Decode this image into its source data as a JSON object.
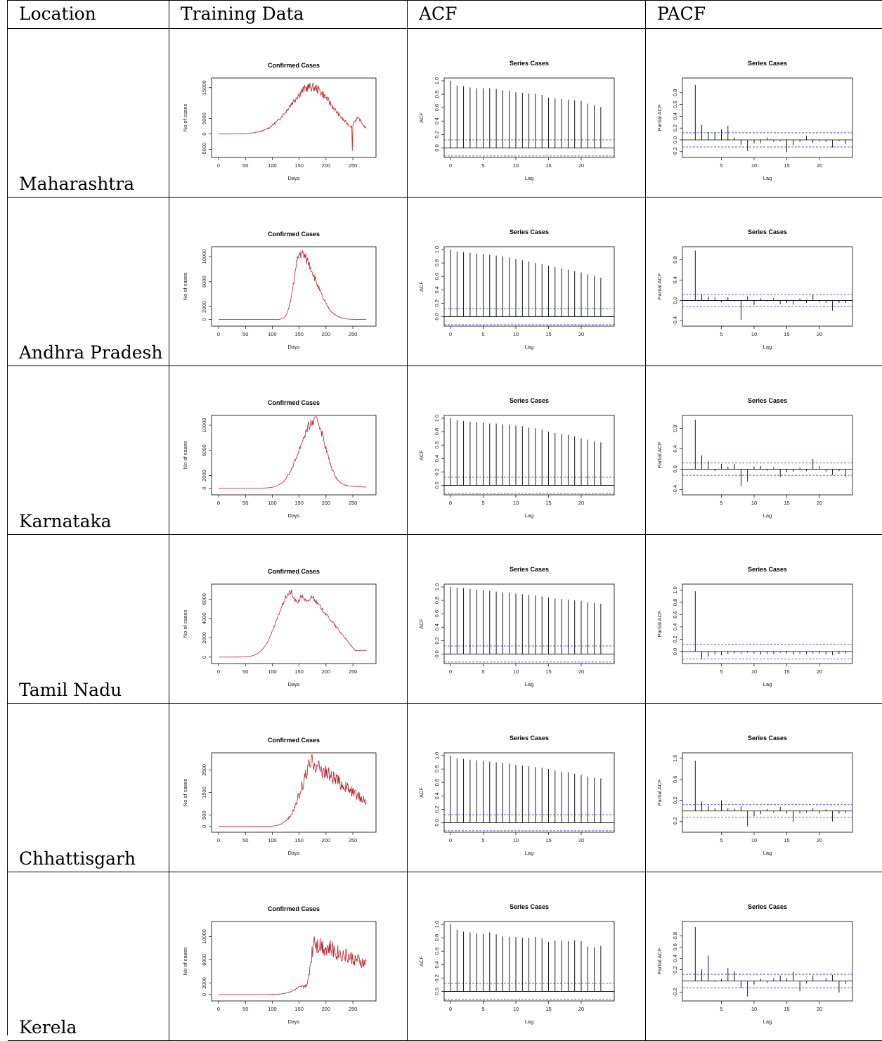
{
  "headers": [
    "Location",
    "Training Data",
    "ACF",
    "PACF"
  ],
  "rows": [
    {
      "location": "Maharashtra",
      "peak": 16000,
      "peak_day": 172,
      "yticks": [
        -5000,
        0,
        5000,
        15000
      ],
      "ylim": [
        -6500,
        17000
      ],
      "pacf_ticks": [
        -0.2,
        0.0,
        0.2,
        0.4,
        0.6,
        0.8
      ],
      "pacf_ylim": [
        -0.25,
        1.0
      ]
    },
    {
      "location": "Andhra Pradesh",
      "peak": 10500,
      "peak_day": 150,
      "yticks": [
        0,
        2000,
        6000,
        10000
      ],
      "ylim": [
        -500,
        11000
      ],
      "pacf_ticks": [
        -0.4,
        0.0,
        0.4,
        0.8
      ],
      "pacf_ylim": [
        -0.45,
        1.0
      ]
    },
    {
      "location": "Karnataka",
      "peak": 10500,
      "peak_day": 178,
      "yticks": [
        0,
        2000,
        6000,
        10000
      ],
      "ylim": [
        -500,
        11000
      ],
      "pacf_ticks": [
        -0.4,
        0.0,
        0.4,
        0.8
      ],
      "pacf_ylim": [
        -0.45,
        1.0
      ]
    },
    {
      "location": "Tamil Nadu",
      "peak": 6800,
      "peak_day": 137,
      "yticks": [
        0,
        2000,
        4000,
        6000
      ],
      "ylim": [
        -300,
        7200
      ],
      "pacf_ticks": [
        0.0,
        0.2,
        0.4,
        0.6,
        0.8,
        1.0
      ],
      "pacf_ylim": [
        -0.15,
        1.05
      ]
    },
    {
      "location": "Chhattisgarh",
      "peak": 2900,
      "peak_day": 180,
      "yticks": [
        0,
        500,
        1500,
        2500
      ],
      "ylim": [
        -100,
        3100
      ],
      "pacf_ticks": [
        -0.2,
        0.2,
        0.6,
        1.0
      ],
      "pacf_ylim": [
        -0.35,
        1.05
      ]
    },
    {
      "location": "Kerela",
      "peak": 11300,
      "peak_day": 180,
      "yticks": [
        0,
        2000,
        6000,
        10000
      ],
      "ylim": [
        -500,
        12000
      ],
      "pacf_ticks": [
        -0.2,
        0.2,
        0.4,
        0.6,
        0.8
      ],
      "pacf_ylim": [
        -0.3,
        1.0
      ]
    }
  ],
  "chart_data": {
    "type": "line",
    "training": {
      "title": "Confirmed Cases",
      "xlabel": "Days",
      "ylabel": "No of cases",
      "xticks": [
        0,
        50,
        100,
        150,
        200,
        250
      ],
      "xlim": [
        0,
        280
      ],
      "line_color": "#c0202a"
    },
    "acf": {
      "title": "Series  Cases",
      "xlabel": "Lag",
      "ylabel": "ACF",
      "xticks": [
        5,
        10,
        15,
        20
      ],
      "yticks": [
        0.0,
        0.2,
        0.4,
        0.6,
        0.8,
        1.0
      ],
      "ylim": [
        -0.1,
        1.0
      ],
      "conf_band": 0.12,
      "series": [
        [
          1,
          0.93,
          0.92,
          0.9,
          0.89,
          0.89,
          0.89,
          0.88,
          0.86,
          0.85,
          0.83,
          0.82,
          0.81,
          0.81,
          0.79,
          0.75,
          0.74,
          0.73,
          0.72,
          0.71,
          0.7,
          0.66,
          0.64,
          0.61
        ],
        [
          1,
          0.97,
          0.96,
          0.95,
          0.94,
          0.93,
          0.92,
          0.91,
          0.9,
          0.88,
          0.86,
          0.84,
          0.82,
          0.8,
          0.78,
          0.76,
          0.74,
          0.72,
          0.7,
          0.68,
          0.66,
          0.63,
          0.61,
          0.58
        ],
        [
          1,
          0.97,
          0.96,
          0.95,
          0.94,
          0.93,
          0.92,
          0.92,
          0.91,
          0.9,
          0.89,
          0.88,
          0.86,
          0.85,
          0.83,
          0.8,
          0.78,
          0.76,
          0.75,
          0.73,
          0.7,
          0.68,
          0.66,
          0.64
        ],
        [
          1,
          0.99,
          0.98,
          0.97,
          0.96,
          0.95,
          0.94,
          0.93,
          0.92,
          0.91,
          0.9,
          0.89,
          0.88,
          0.87,
          0.86,
          0.84,
          0.83,
          0.82,
          0.81,
          0.8,
          0.79,
          0.77,
          0.76,
          0.75
        ],
        [
          1,
          0.96,
          0.95,
          0.94,
          0.93,
          0.92,
          0.91,
          0.9,
          0.89,
          0.88,
          0.86,
          0.85,
          0.84,
          0.83,
          0.82,
          0.8,
          0.78,
          0.76,
          0.75,
          0.73,
          0.71,
          0.69,
          0.67,
          0.66
        ],
        [
          1,
          0.92,
          0.89,
          0.88,
          0.87,
          0.86,
          0.88,
          0.85,
          0.82,
          0.81,
          0.81,
          0.8,
          0.8,
          0.81,
          0.79,
          0.74,
          0.76,
          0.76,
          0.75,
          0.76,
          0.75,
          0.67,
          0.66,
          0.68
        ]
      ]
    },
    "pacf": {
      "title": "Series  Cases",
      "xlabel": "Lag",
      "ylabel": "Partial ACF",
      "xticks": [
        5,
        10,
        15,
        20
      ],
      "conf_band": 0.12,
      "series": [
        [
          0.93,
          0.25,
          0.13,
          0.12,
          0.18,
          0.24,
          0.04,
          -0.08,
          -0.19,
          -0.06,
          -0.05,
          0.04,
          -0.03,
          -0.02,
          -0.21,
          -0.09,
          -0.03,
          0.07,
          -0.05,
          -0.02,
          -0.03,
          -0.13,
          -0.02,
          -0.07
        ],
        [
          0.98,
          0.11,
          0.08,
          0.06,
          -0.04,
          0.06,
          -0.02,
          -0.38,
          0.08,
          -0.09,
          0.04,
          -0.02,
          0.05,
          -0.07,
          -0.05,
          -0.08,
          0.04,
          -0.05,
          0.11,
          -0.03,
          -0.05,
          -0.2,
          -0.05,
          -0.05
        ],
        [
          0.97,
          0.27,
          0.15,
          -0.04,
          0.1,
          0.05,
          0.1,
          -0.33,
          -0.25,
          0.05,
          0.06,
          -0.03,
          0.04,
          -0.16,
          -0.06,
          -0.05,
          0.03,
          -0.04,
          0.2,
          0.06,
          -0.05,
          -0.12,
          -0.04,
          -0.15
        ],
        [
          0.98,
          -0.12,
          -0.08,
          -0.05,
          -0.06,
          -0.04,
          -0.03,
          -0.03,
          -0.02,
          -0.03,
          -0.05,
          -0.04,
          -0.04,
          -0.02,
          -0.03,
          -0.05,
          -0.03,
          -0.04,
          -0.03,
          -0.03,
          -0.05,
          -0.06,
          -0.04,
          -0.03
        ],
        [
          0.95,
          0.18,
          0.1,
          0.05,
          0.2,
          0.05,
          0.04,
          0.1,
          -0.29,
          -0.1,
          -0.06,
          0.04,
          -0.03,
          0.08,
          -0.05,
          -0.21,
          -0.05,
          -0.03,
          0.05,
          -0.05,
          0.03,
          -0.2,
          -0.05,
          -0.04
        ],
        [
          0.95,
          0.21,
          0.45,
          0.02,
          0.04,
          0.23,
          0.17,
          -0.12,
          -0.27,
          -0.06,
          0.04,
          -0.03,
          0.05,
          0.1,
          0.05,
          0.17,
          -0.18,
          -0.04,
          0.1,
          0.01,
          0.05,
          0.11,
          -0.2,
          -0.05
        ]
      ]
    }
  }
}
